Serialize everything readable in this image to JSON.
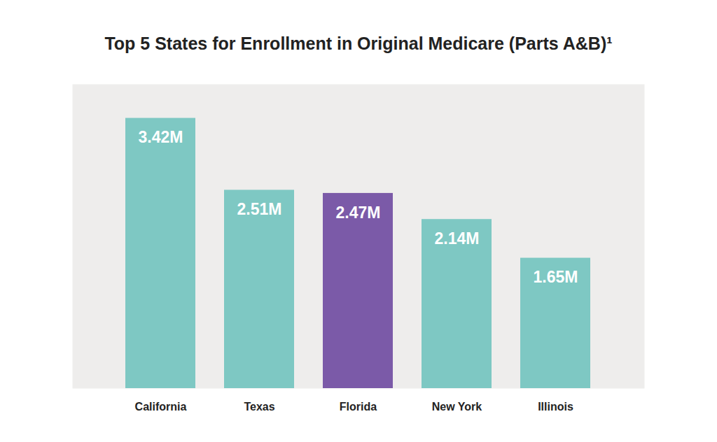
{
  "chart_data": {
    "type": "bar",
    "title": "Top 5 States for Enrollment in Original Medicare (Parts A&B)¹",
    "categories": [
      "California",
      "Texas",
      "Florida",
      "New York",
      "Illinois"
    ],
    "values": [
      3.42,
      2.51,
      2.47,
      2.14,
      1.65
    ],
    "value_labels": [
      "3.42M",
      "2.51M",
      "2.47M",
      "2.14M",
      "1.65M"
    ],
    "colors": [
      "#7ec8c3",
      "#7ec8c3",
      "#7b5aa8",
      "#7ec8c3",
      "#7ec8c3"
    ],
    "ylim": [
      0,
      3.85
    ],
    "data_labels": true,
    "tick_labels": "x"
  }
}
